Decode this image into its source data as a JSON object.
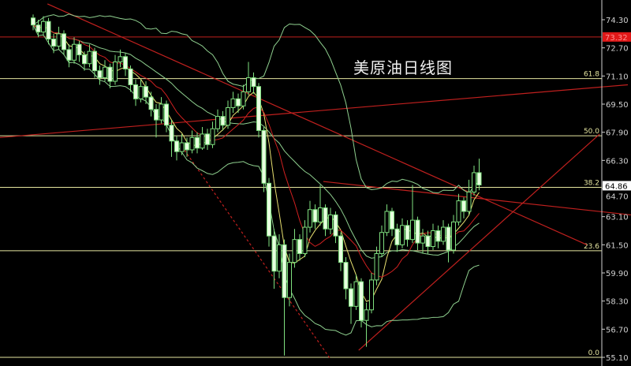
{
  "chart_data": {
    "type": "candlestick",
    "title": "美原油日线图",
    "ylim": [
      55.1,
      74.3
    ],
    "yticks": [
      "74.30",
      "72.70",
      "71.10",
      "69.50",
      "67.90",
      "66.30",
      "64.70",
      "63.10",
      "61.50",
      "59.90",
      "58.30",
      "56.70",
      "55.10"
    ],
    "current_price": "64.86",
    "red_level": "73.32",
    "colors": {
      "background": "#000000",
      "candle": "#7fe07f",
      "candle_fill": "#e8ffe0",
      "fib": "#e6e6a0",
      "trend": "#c0201e",
      "axis": "#d0d0d0",
      "ma_fast": "#e8e070",
      "ma_slow": "#d02020",
      "bands": "#8fd08f"
    },
    "fib_levels": [
      {
        "label": "0.0",
        "price": 55.1
      },
      {
        "label": "23.6",
        "price": 61.16
      },
      {
        "label": "38.2",
        "price": 64.77
      },
      {
        "label": "50.0",
        "price": 67.7
      },
      {
        "label": "61.8",
        "price": 70.95
      }
    ],
    "trendlines": [
      {
        "from": [
          2.8,
          75.2
        ],
        "to": [
          108,
          61.5
        ],
        "style": "solid"
      },
      {
        "from": [
          -6.5,
          67.6
        ],
        "to": [
          116,
          70.6
        ],
        "style": "solid"
      },
      {
        "from": [
          56.6,
          65.1
        ],
        "to": [
          116.6,
          63.2
        ],
        "style": "solid"
      },
      {
        "from": [
          63.5,
          55.5
        ],
        "to": [
          110.5,
          67.8
        ],
        "style": "solid"
      },
      {
        "from": [
          29,
          67.1
        ],
        "to": [
          58,
          55.0
        ],
        "style": "dashed"
      }
    ],
    "candles": [
      [
        74.4,
        74.6,
        73.7,
        74.0
      ],
      [
        74.0,
        74.3,
        73.3,
        73.6
      ],
      [
        73.6,
        74.5,
        73.4,
        74.2
      ],
      [
        74.2,
        74.4,
        72.9,
        73.2
      ],
      [
        73.2,
        73.5,
        72.4,
        72.8
      ],
      [
        72.8,
        73.9,
        72.6,
        73.5
      ],
      [
        73.5,
        73.7,
        72.3,
        72.6
      ],
      [
        72.6,
        72.9,
        71.6,
        72.0
      ],
      [
        72.0,
        73.3,
        71.8,
        72.9
      ],
      [
        72.9,
        73.1,
        71.9,
        72.3
      ],
      [
        72.3,
        72.5,
        71.4,
        71.8
      ],
      [
        71.8,
        72.9,
        71.6,
        72.5
      ],
      [
        72.5,
        72.7,
        71.0,
        71.4
      ],
      [
        71.4,
        71.7,
        70.6,
        71.0
      ],
      [
        71.0,
        72.0,
        70.8,
        71.6
      ],
      [
        71.6,
        71.8,
        70.4,
        70.8
      ],
      [
        70.8,
        72.3,
        70.6,
        71.9
      ],
      [
        71.9,
        72.6,
        71.6,
        72.2
      ],
      [
        72.2,
        72.4,
        71.1,
        71.5
      ],
      [
        71.5,
        71.7,
        70.2,
        70.6
      ],
      [
        70.6,
        70.9,
        69.4,
        69.8
      ],
      [
        69.8,
        70.9,
        69.6,
        70.5
      ],
      [
        70.5,
        70.8,
        69.5,
        69.9
      ],
      [
        69.9,
        70.2,
        68.8,
        69.2
      ],
      [
        69.2,
        69.5,
        67.6,
        68.6
      ],
      [
        68.6,
        69.9,
        68.4,
        69.5
      ],
      [
        69.5,
        69.7,
        67.9,
        68.3
      ],
      [
        68.3,
        68.6,
        66.5,
        67.4
      ],
      [
        67.4,
        67.7,
        66.3,
        66.8
      ],
      [
        66.8,
        67.8,
        66.6,
        67.3
      ],
      [
        67.3,
        67.6,
        66.5,
        66.9
      ],
      [
        66.9,
        68.0,
        66.7,
        67.6
      ],
      [
        67.6,
        67.9,
        66.7,
        67.0
      ],
      [
        67.0,
        68.2,
        66.9,
        67.8
      ],
      [
        67.8,
        68.1,
        66.9,
        67.2
      ],
      [
        67.2,
        68.5,
        67.0,
        68.1
      ],
      [
        68.1,
        69.2,
        67.9,
        68.8
      ],
      [
        68.8,
        69.1,
        68.0,
        68.3
      ],
      [
        68.3,
        69.7,
        68.1,
        69.3
      ],
      [
        69.3,
        70.2,
        69.0,
        69.8
      ],
      [
        69.8,
        70.1,
        69.0,
        69.4
      ],
      [
        69.4,
        70.6,
        69.2,
        70.2
      ],
      [
        70.2,
        71.9,
        70.0,
        71.0
      ],
      [
        71.0,
        71.3,
        70.1,
        70.5
      ],
      [
        70.5,
        70.7,
        67.6,
        68.0
      ],
      [
        68.0,
        68.2,
        64.5,
        65.0
      ],
      [
        65.0,
        65.3,
        61.4,
        62.0
      ],
      [
        62.0,
        62.4,
        59.0,
        60.0
      ],
      [
        60.0,
        62.1,
        59.6,
        61.5
      ],
      [
        61.5,
        61.8,
        55.2,
        58.5
      ],
      [
        58.5,
        61.0,
        58.0,
        60.5
      ],
      [
        60.5,
        62.4,
        60.2,
        61.8
      ],
      [
        61.8,
        62.1,
        60.6,
        61.0
      ],
      [
        61.0,
        62.9,
        60.8,
        62.5
      ],
      [
        62.5,
        64.0,
        62.2,
        63.5
      ],
      [
        63.5,
        63.8,
        62.4,
        62.8
      ],
      [
        62.8,
        64.9,
        62.6,
        63.6
      ],
      [
        63.6,
        63.8,
        62.0,
        62.4
      ],
      [
        62.4,
        63.6,
        62.1,
        63.2
      ],
      [
        63.2,
        63.4,
        61.6,
        62.0
      ],
      [
        62.0,
        62.2,
        60.0,
        60.5
      ],
      [
        60.5,
        60.8,
        58.4,
        59.0
      ],
      [
        59.0,
        59.3,
        57.0,
        58.0
      ],
      [
        58.0,
        59.8,
        57.8,
        59.4
      ],
      [
        59.4,
        59.6,
        56.8,
        57.2
      ],
      [
        57.2,
        58.2,
        55.7,
        57.8
      ],
      [
        57.8,
        59.9,
        57.6,
        59.5
      ],
      [
        59.5,
        61.4,
        59.2,
        61.0
      ],
      [
        61.0,
        62.6,
        60.8,
        62.2
      ],
      [
        62.2,
        63.8,
        62.0,
        63.4
      ],
      [
        63.4,
        63.6,
        62.0,
        62.4
      ],
      [
        62.4,
        62.7,
        61.1,
        61.5
      ],
      [
        61.5,
        63.0,
        61.3,
        62.6
      ],
      [
        62.6,
        62.9,
        61.4,
        61.8
      ],
      [
        61.8,
        64.9,
        61.6,
        62.9
      ],
      [
        62.9,
        63.1,
        61.2,
        61.6
      ],
      [
        61.6,
        62.4,
        61.0,
        62.0
      ],
      [
        62.0,
        62.3,
        61.0,
        61.4
      ],
      [
        61.4,
        62.7,
        61.2,
        62.3
      ],
      [
        62.3,
        62.6,
        61.3,
        61.7
      ],
      [
        61.7,
        62.9,
        61.5,
        62.5
      ],
      [
        62.5,
        62.7,
        60.5,
        61.2
      ],
      [
        61.2,
        63.2,
        61.0,
        62.8
      ],
      [
        62.8,
        64.4,
        62.6,
        64.0
      ],
      [
        64.0,
        64.2,
        63.0,
        63.4
      ],
      [
        63.4,
        65.2,
        63.2,
        64.5
      ],
      [
        64.5,
        66.0,
        64.3,
        65.6
      ],
      [
        65.6,
        66.4,
        64.6,
        64.9
      ]
    ]
  }
}
